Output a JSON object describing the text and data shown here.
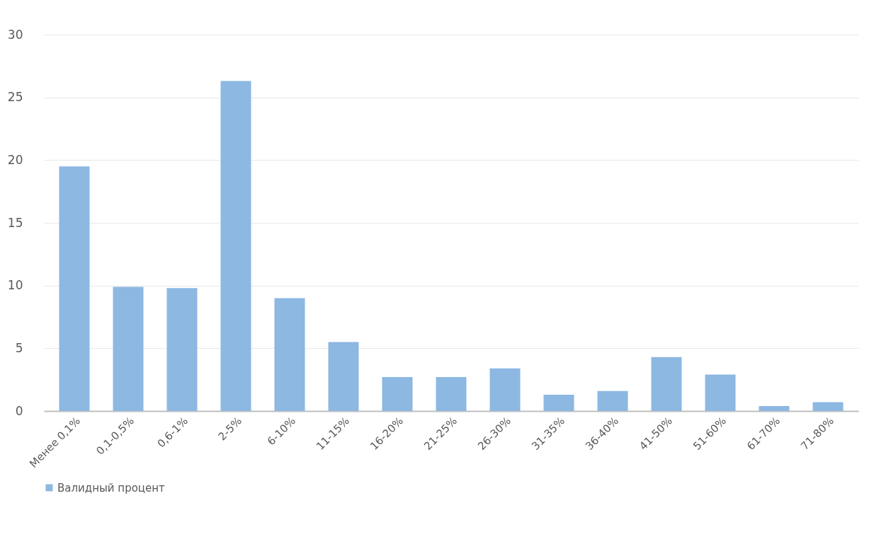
{
  "chart_data": {
    "type": "bar",
    "categories": [
      "Менее 0,1%",
      "0,1-0,5%",
      "0,6-1%",
      "2-5%",
      "6-10%",
      "11-15%",
      "16-20%",
      "21-25%",
      "26-30%",
      "31-35%",
      "36-40%",
      "41-50%",
      "51-60%",
      "61-70%",
      "71-80%"
    ],
    "series": [
      {
        "name": "Валидный процент",
        "color": "#8cb8e2",
        "values": [
          19.5,
          9.9,
          9.8,
          26.3,
          9.0,
          5.5,
          2.7,
          2.7,
          3.4,
          1.3,
          1.6,
          4.3,
          2.9,
          0.4,
          0.7
        ]
      }
    ],
    "ylim": [
      0,
      30
    ],
    "yticks": [
      0,
      5,
      10,
      15,
      20,
      25,
      30
    ],
    "grid": "y",
    "legend": "bottom"
  }
}
